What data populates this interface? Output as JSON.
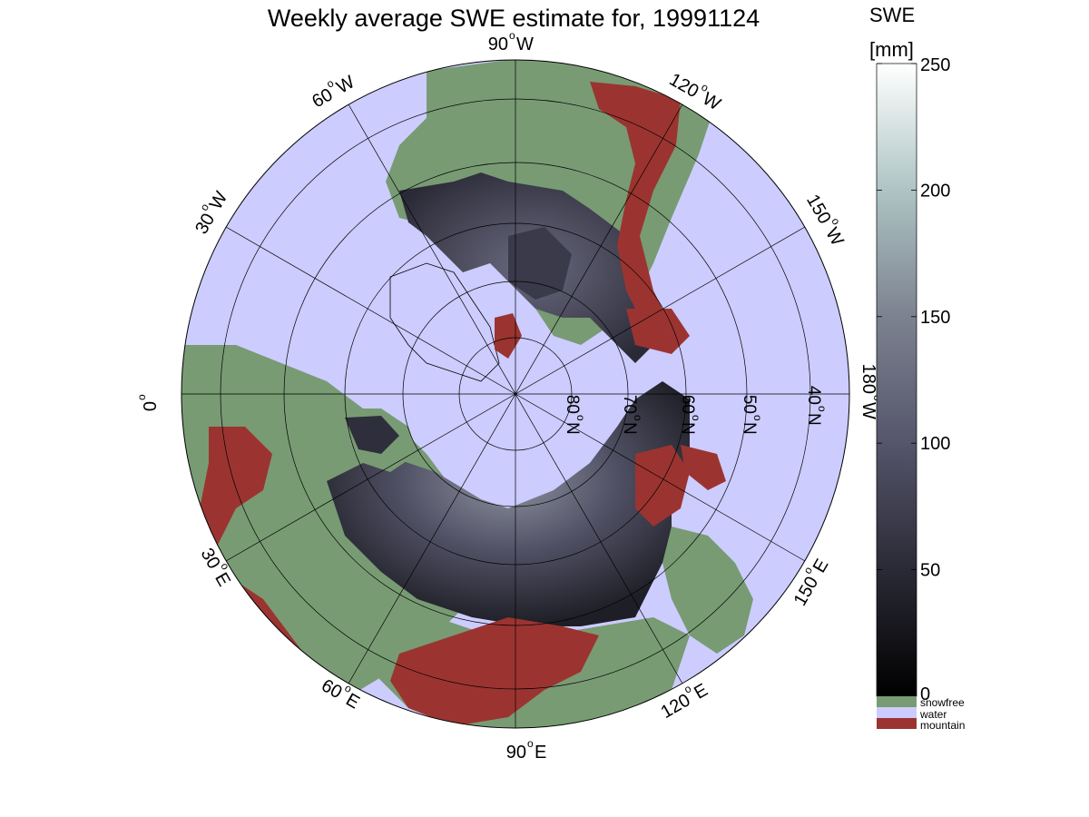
{
  "title": "Weekly average SWE estimate for, 19991124",
  "colorbar": {
    "title_line1": "SWE",
    "title_line2": "[mm]",
    "ticks": [
      "250",
      "200",
      "150",
      "100",
      "50",
      "0"
    ],
    "range": [
      0,
      250
    ],
    "legend": [
      {
        "label": "snowfree",
        "color": "#789b73"
      },
      {
        "label": "water",
        "color": "#ccccff"
      },
      {
        "label": "mountain",
        "color": "#9b3430"
      }
    ]
  },
  "map": {
    "projection": "north polar stereographic",
    "colors": {
      "water": "#ccccff",
      "snowfree": "#789b73",
      "mountain": "#9b3430",
      "snow_low": "#1c1c24",
      "snow_mid": "#4a4a5e",
      "snow_high": "#8e93a0",
      "coastline": "#000000"
    },
    "longitude_labels": {
      "lon_90W": "90",
      "lon_120W": "120",
      "lon_150W": "150",
      "lon_180W": "180",
      "lon_150E": "150",
      "lon_120E": "120",
      "lon_90E": "90",
      "lon_60E": "60",
      "lon_30E": "30",
      "lon_0": "0",
      "lon_30W": "30",
      "lon_60W": "60"
    },
    "longitude_suffix": {
      "W": "W",
      "E": "E",
      "deg": "o"
    },
    "latitude_labels": {
      "lat_80": "80",
      "lat_70": "70",
      "lat_60": "60",
      "lat_50": "50",
      "lat_40": "40",
      "suffix": "N",
      "deg": "o"
    }
  }
}
